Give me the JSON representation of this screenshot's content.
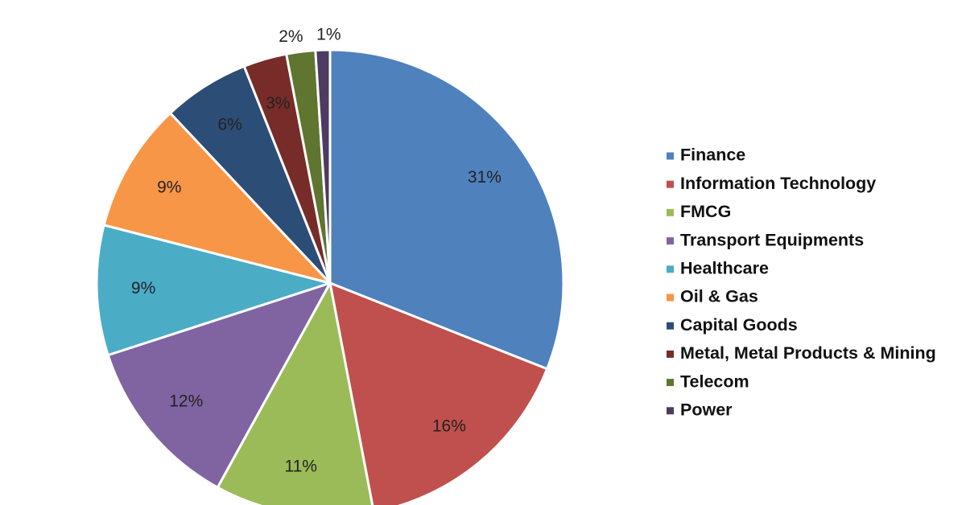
{
  "chart_data": {
    "type": "pie",
    "title": "",
    "legend_position": "right",
    "slices": [
      {
        "label": "Finance",
        "value": 31,
        "display": "31%",
        "color": "#4F81BD"
      },
      {
        "label": "Information Technology",
        "value": 16,
        "display": "16%",
        "color": "#C0504D"
      },
      {
        "label": "FMCG",
        "value": 11,
        "display": "11%",
        "color": "#9BBB59"
      },
      {
        "label": "Transport Equipments",
        "value": 12,
        "display": "12%",
        "color": "#8064A2"
      },
      {
        "label": "Healthcare",
        "value": 9,
        "display": "9%",
        "color": "#4BACC6"
      },
      {
        "label": "Oil & Gas",
        "value": 9,
        "display": "9%",
        "color": "#F79646"
      },
      {
        "label": "Capital Goods",
        "value": 6,
        "display": "6%",
        "color": "#2C4D75"
      },
      {
        "label": "Metal, Metal Products & Mining",
        "value": 3,
        "display": "3%",
        "color": "#772C2A"
      },
      {
        "label": "Telecom",
        "value": 2,
        "display": "2%",
        "color": "#5F7530"
      },
      {
        "label": "Power",
        "value": 1,
        "display": "1%",
        "color": "#4D3B62"
      }
    ]
  }
}
